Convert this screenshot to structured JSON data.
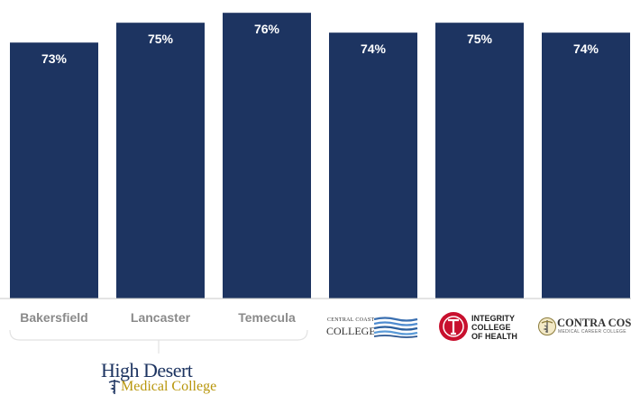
{
  "chart_data": {
    "type": "bar",
    "categories": [
      "Bakersfield",
      "Lancaster",
      "Temecula",
      "Central Coast College",
      "Integrity College of Health",
      "Contra Costa Medical Career College"
    ],
    "values": [
      73,
      75,
      76,
      74,
      75,
      74
    ],
    "value_labels": [
      "73%",
      "75%",
      "76%",
      "74%",
      "75%",
      "74%"
    ],
    "unit": "%",
    "title": "",
    "xlabel": "",
    "ylabel": "",
    "grid": false,
    "bar_color": "#1d3461"
  },
  "x_labels": [
    "Bakersfield",
    "Lancaster",
    "Temecula"
  ],
  "logos": {
    "central_coast": {
      "small": "CENTRAL COAST",
      "big": "COLLEGE"
    },
    "integrity": {
      "line1": "INTEGRITY",
      "line2": "COLLEGE",
      "line3": "OF HEALTH"
    },
    "contra_costa": {
      "big": "CONTRA COSTA",
      "small": "MEDICAL CAREER COLLEGE"
    },
    "high_desert": {
      "top": "High Desert",
      "bottom": "Medical College"
    }
  }
}
